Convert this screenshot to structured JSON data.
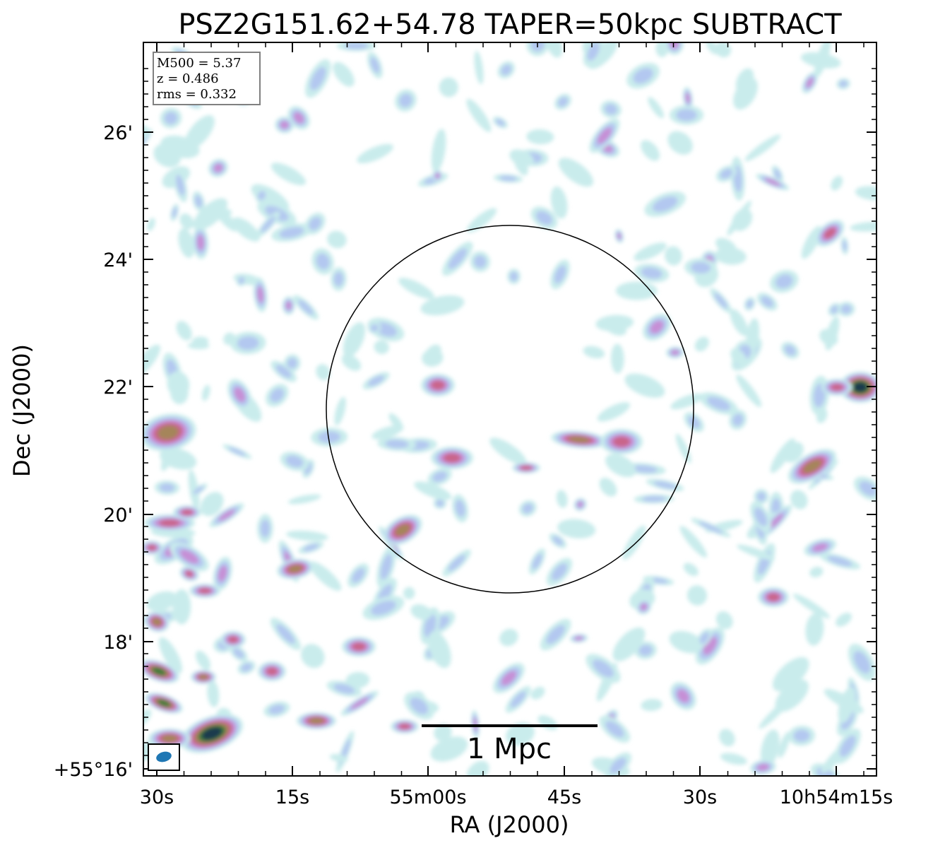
{
  "chart_data": {
    "type": "heatmap",
    "title": "PSZ2G151.62+54.78 TAPER=50kpc SUBTRACT",
    "xlabel": "RA (J2000)",
    "ylabel": "Dec (J2000)",
    "x_ticks": [
      "30s",
      "15s",
      "55m00s",
      "45s",
      "30s",
      "10h54m15s"
    ],
    "y_ticks": [
      "26'",
      "24'",
      "22'",
      "20'",
      "18'",
      "+55°16'"
    ],
    "info_box": [
      "M500 = 5.37",
      "z = 0.486",
      "rms = 0.332"
    ],
    "scale_bar_label": "1 Mpc",
    "colormap": "cubehelix_r",
    "colors": {
      "level1": "#c9ecec",
      "level2": "#b3c8f0",
      "level3": "#c68fd6",
      "level4": "#c9658a",
      "level5": "#a5855a",
      "level6": "#3e7c3a",
      "level7": "#1b3a4e",
      "beam": "#1f77b4"
    },
    "has_circle": true,
    "has_beam": true
  }
}
